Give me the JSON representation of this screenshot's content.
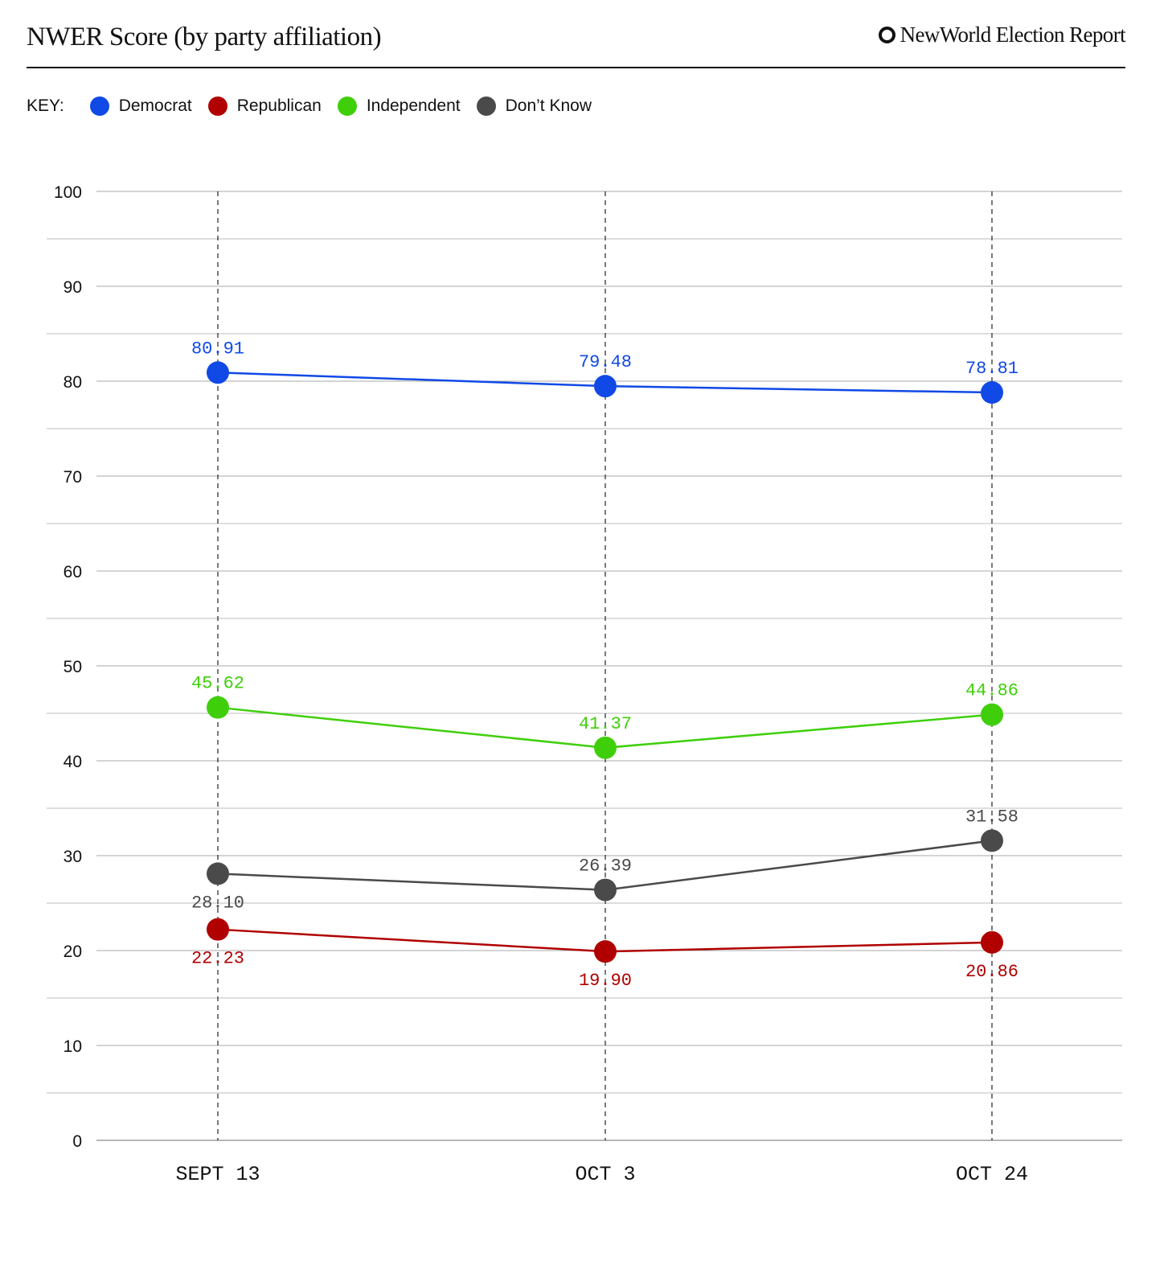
{
  "header": {
    "title": "NWER Score (by party affiliation)",
    "brand": "NewWorld Election Report"
  },
  "legend": {
    "label": "KEY:"
  },
  "chart_data": {
    "type": "line",
    "title": "NWER Score (by party affiliation)",
    "xlabel": "",
    "ylabel": "",
    "ylim": [
      0,
      100
    ],
    "yticks": [
      0,
      10,
      20,
      30,
      40,
      50,
      60,
      70,
      80,
      90,
      100
    ],
    "grid": true,
    "legend_position": "top-left",
    "categories": [
      "SEPT 13",
      "OCT 3",
      "OCT 24"
    ],
    "series": [
      {
        "name": "Democrat",
        "color": "#1049e6",
        "values": [
          80.91,
          79.48,
          78.81
        ],
        "labels": [
          "80.91",
          "79.48",
          "78.81"
        ],
        "label_side": [
          "above",
          "above",
          "above"
        ]
      },
      {
        "name": "Republican",
        "color": "#b00000",
        "values": [
          22.23,
          19.9,
          20.86
        ],
        "labels": [
          "22.23",
          "19.90",
          "20.86"
        ],
        "label_side": [
          "below",
          "below",
          "below"
        ]
      },
      {
        "name": "Independent",
        "color": "#3fcf0a",
        "values": [
          45.62,
          41.37,
          44.86
        ],
        "labels": [
          "45.62",
          "41.37",
          "44.86"
        ],
        "label_side": [
          "above",
          "above",
          "above"
        ]
      },
      {
        "name": "Don’t Know",
        "color": "#4a4a4a",
        "values": [
          28.1,
          26.39,
          31.58
        ],
        "labels": [
          "28.10",
          "26.39",
          "31.58"
        ],
        "label_side": [
          "below",
          "above",
          "above"
        ]
      }
    ]
  }
}
